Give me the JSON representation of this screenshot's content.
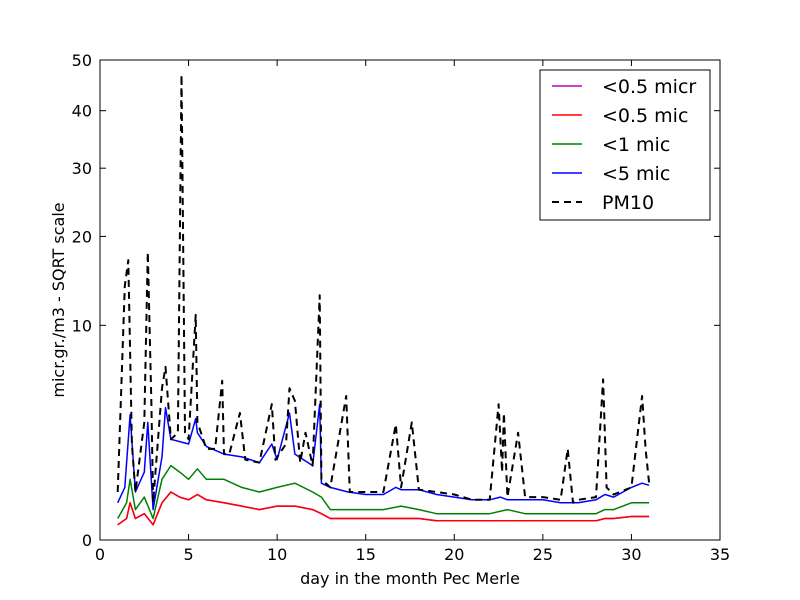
{
  "chart_data": {
    "type": "line",
    "title": "",
    "xlabel": "day in the month Pec Merle",
    "ylabel": "micr.gr./m3 - SQRT scale",
    "xlim": [
      0,
      35
    ],
    "ylim": [
      0,
      50
    ],
    "y_scale": "sqrt",
    "grid": false,
    "legend_position": "top-right",
    "x_ticks": [
      0,
      5,
      10,
      15,
      20,
      25,
      30,
      35
    ],
    "y_ticks": [
      0,
      10,
      20,
      30,
      40,
      50
    ],
    "series": [
      {
        "name": "<0.5 micr",
        "color": "#bf00bf",
        "style": "solid",
        "x": [
          1,
          1.5,
          1.7,
          2,
          2.5,
          3,
          3.5,
          4,
          4.5,
          5,
          5.5,
          6,
          7,
          8,
          9,
          10,
          11,
          12,
          12.5,
          13,
          14,
          15,
          16,
          17,
          18,
          19,
          20,
          21,
          22,
          23,
          24,
          25,
          26,
          27,
          28,
          28.5,
          29,
          30,
          31
        ],
        "values": [
          0.05,
          0.1,
          0.3,
          0.1,
          0.15,
          0.05,
          0.3,
          0.5,
          0.4,
          0.35,
          0.45,
          0.35,
          0.3,
          0.25,
          0.2,
          0.25,
          0.25,
          0.2,
          0.15,
          0.1,
          0.1,
          0.1,
          0.1,
          0.1,
          0.1,
          0.08,
          0.08,
          0.08,
          0.08,
          0.08,
          0.08,
          0.08,
          0.08,
          0.08,
          0.08,
          0.1,
          0.1,
          0.12,
          0.12
        ]
      },
      {
        "name": "<0.5 mic",
        "color": "#ff0000",
        "style": "solid",
        "x": [
          1,
          1.5,
          1.7,
          2,
          2.5,
          3,
          3.5,
          4,
          4.5,
          5,
          5.5,
          6,
          7,
          8,
          9,
          10,
          11,
          12,
          12.5,
          13,
          14,
          15,
          16,
          17,
          18,
          19,
          20,
          21,
          22,
          23,
          24,
          25,
          26,
          27,
          28,
          28.5,
          29,
          30,
          31
        ],
        "values": [
          0.05,
          0.1,
          0.3,
          0.1,
          0.15,
          0.05,
          0.3,
          0.5,
          0.4,
          0.35,
          0.45,
          0.35,
          0.3,
          0.25,
          0.2,
          0.25,
          0.25,
          0.2,
          0.15,
          0.1,
          0.1,
          0.1,
          0.1,
          0.1,
          0.1,
          0.08,
          0.08,
          0.08,
          0.08,
          0.08,
          0.08,
          0.08,
          0.08,
          0.08,
          0.08,
          0.1,
          0.1,
          0.12,
          0.12
        ]
      },
      {
        "name": "<1 mic",
        "color": "#008000",
        "style": "solid",
        "x": [
          1,
          1.5,
          1.7,
          2,
          2.5,
          3,
          3.5,
          4,
          4.5,
          5,
          5.5,
          6,
          7,
          8,
          9,
          10,
          11,
          12,
          12.5,
          13,
          14,
          15,
          16,
          17,
          18,
          19,
          20,
          21,
          22,
          23,
          24,
          25,
          26,
          27,
          28,
          28.5,
          29,
          30,
          31
        ],
        "values": [
          0.1,
          0.3,
          0.8,
          0.2,
          0.4,
          0.1,
          0.8,
          1.2,
          1.0,
          0.8,
          1.1,
          0.8,
          0.8,
          0.6,
          0.5,
          0.6,
          0.7,
          0.5,
          0.4,
          0.2,
          0.2,
          0.2,
          0.2,
          0.25,
          0.2,
          0.15,
          0.15,
          0.15,
          0.15,
          0.2,
          0.15,
          0.15,
          0.15,
          0.15,
          0.15,
          0.2,
          0.2,
          0.3,
          0.3
        ]
      },
      {
        "name": "<5 mic",
        "color": "#0000ff",
        "style": "solid",
        "x": [
          1,
          1.4,
          1.7,
          2,
          2.5,
          2.7,
          3,
          3.5,
          3.7,
          4,
          4.5,
          5,
          5.4,
          5.5,
          6,
          7,
          8,
          9,
          9.7,
          10,
          10.7,
          11,
          12,
          12.4,
          12.5,
          13,
          14,
          15,
          16,
          16.7,
          17,
          18,
          19,
          20,
          21,
          22,
          22.6,
          23,
          24,
          25,
          26,
          27,
          28,
          28.5,
          29,
          30,
          30.6,
          31
        ],
        "values": [
          0.3,
          0.6,
          3.4,
          0.5,
          1.0,
          3.0,
          0.2,
          1.5,
          3.8,
          2.2,
          2.1,
          2.0,
          3.2,
          2.5,
          1.9,
          1.6,
          1.5,
          1.3,
          2.0,
          1.4,
          3.5,
          1.6,
          1.2,
          4.0,
          0.7,
          0.6,
          0.5,
          0.45,
          0.45,
          0.6,
          0.55,
          0.55,
          0.45,
          0.4,
          0.35,
          0.35,
          0.4,
          0.35,
          0.35,
          0.35,
          0.3,
          0.3,
          0.35,
          0.45,
          0.4,
          0.6,
          0.7,
          0.65
        ]
      },
      {
        "name": "PM10",
        "color": "#000000",
        "style": "dashed",
        "x": [
          1,
          1.4,
          1.6,
          1.8,
          2,
          2.5,
          2.7,
          2.9,
          3,
          3.5,
          3.7,
          4,
          4.4,
          4.6,
          4.8,
          5,
          5.4,
          5.5,
          5.7,
          6,
          6.5,
          6.9,
          7,
          7.3,
          7.9,
          8.2,
          9,
          9.7,
          9.9,
          10.5,
          10.7,
          11,
          11.3,
          11.6,
          12,
          12.4,
          12.5,
          13,
          13.9,
          14.1,
          15,
          16,
          16.7,
          17,
          17.6,
          18,
          19,
          20,
          21,
          22,
          22.5,
          22.7,
          22.8,
          23,
          23.6,
          24,
          25,
          26,
          26.4,
          26.7,
          27,
          28,
          28.4,
          28.6,
          29,
          30,
          30.6,
          30.8,
          31
        ],
        "values": [
          0.5,
          14.0,
          17.0,
          2.0,
          0.5,
          3.0,
          18.0,
          4.0,
          0.3,
          5.0,
          6.5,
          2.2,
          2.5,
          47.0,
          2.5,
          2.2,
          11.0,
          3.0,
          2.5,
          1.8,
          1.8,
          5.5,
          1.6,
          1.6,
          3.5,
          1.4,
          1.3,
          4.0,
          1.4,
          2.0,
          5.0,
          4.2,
          1.3,
          2.5,
          1.2,
          13.0,
          0.8,
          0.6,
          4.5,
          0.5,
          0.5,
          0.5,
          2.9,
          0.6,
          3.0,
          0.55,
          0.5,
          0.45,
          0.35,
          0.35,
          4.0,
          1.0,
          3.5,
          0.4,
          2.5,
          0.4,
          0.4,
          0.35,
          1.8,
          0.3,
          0.35,
          0.4,
          5.6,
          0.6,
          0.45,
          0.6,
          4.5,
          1.8,
          0.7
        ]
      }
    ]
  }
}
